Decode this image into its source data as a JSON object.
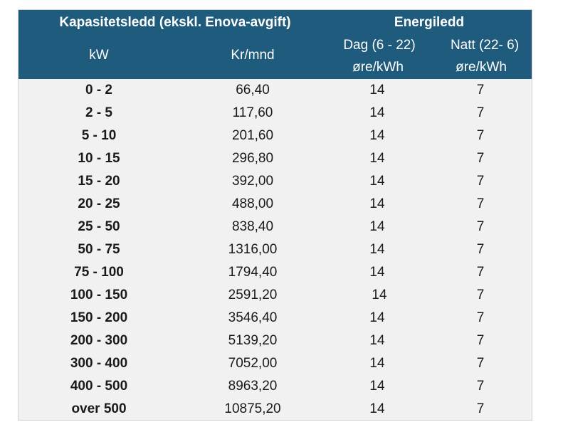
{
  "header": {
    "capacity_title": "Kapasitetsledd (ekskl. Enova-avgift)",
    "energy_title": "Energiledd",
    "kw_label": "kW",
    "kr_label": "Kr/mnd",
    "dag_label": "Dag (6 - 22)",
    "natt_label": "Natt (22- 6)",
    "dag_unit": "øre/kWh",
    "natt_unit": "øre/kWh"
  },
  "colors": {
    "header_bg": "#1f5b7d",
    "header_text": "#ffffff",
    "body_bg": "#f1f1f1"
  },
  "rows": [
    {
      "kw": "0 - 2",
      "kr": "66,40",
      "dag": "14",
      "natt": "7"
    },
    {
      "kw": "2 - 5",
      "kr": "117,60",
      "dag": "14",
      "natt": "7"
    },
    {
      "kw": "5 - 10",
      "kr": "201,60",
      "dag": "14",
      "natt": "7"
    },
    {
      "kw": "10 - 15",
      "kr": "296,80",
      "dag": "14",
      "natt": "7"
    },
    {
      "kw": "15 - 20",
      "kr": "392,00",
      "dag": "14",
      "natt": "7"
    },
    {
      "kw": "20 - 25",
      "kr": "488,00",
      "dag": "14",
      "natt": "7"
    },
    {
      "kw": "25 - 50",
      "kr": "838,40",
      "dag": "14",
      "natt": "7"
    },
    {
      "kw": "50 - 75",
      "kr": "1316,00",
      "dag": "14",
      "natt": "7"
    },
    {
      "kw": "75 - 100",
      "kr": "1794,40",
      "dag": "14",
      "natt": "7"
    },
    {
      "kw": "100 - 150",
      "kr": "2591,20",
      "dag": "14",
      "natt": "7"
    },
    {
      "kw": "150 - 200",
      "kr": "3546,40",
      "dag": "14",
      "natt": "7"
    },
    {
      "kw": "200 - 300",
      "kr": "5139,20",
      "dag": "14",
      "natt": "7"
    },
    {
      "kw": "300 - 400",
      "kr": "7052,00",
      "dag": "14",
      "natt": "7"
    },
    {
      "kw": "400 - 500",
      "kr": "8963,20",
      "dag": "14",
      "natt": "7"
    },
    {
      "kw": "over 500",
      "kr": "10875,20",
      "dag": "14",
      "natt": "7"
    }
  ]
}
